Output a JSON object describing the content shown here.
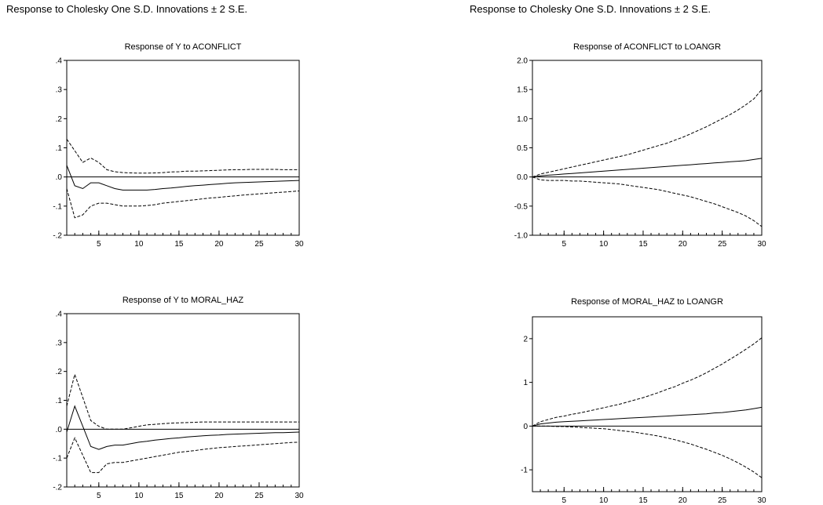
{
  "headings": {
    "left": "Response to Cholesky One S.D. Innovations ± 2 S.E.",
    "right": "Response to Cholesky One S.D. Innovations ± 2 S.E."
  },
  "chart_data": [
    {
      "type": "line",
      "title": "Response of Y to ACONFLICT",
      "xlim": [
        1,
        30
      ],
      "ylim": [
        -0.2,
        0.4
      ],
      "xticks": [
        5,
        10,
        15,
        20,
        25,
        30
      ],
      "yticks": [
        -0.2,
        -0.1,
        0.0,
        0.1,
        0.2,
        0.3,
        0.4
      ],
      "ytick_labels": [
        "-.2",
        "-.1",
        ".0",
        ".1",
        ".2",
        ".3",
        ".4"
      ],
      "x": [
        1,
        2,
        3,
        4,
        5,
        6,
        7,
        8,
        9,
        10,
        11,
        12,
        13,
        14,
        15,
        16,
        17,
        18,
        19,
        20,
        21,
        22,
        23,
        24,
        25,
        26,
        27,
        28,
        29,
        30
      ],
      "series": [
        {
          "values": [
            0.04,
            -0.03,
            -0.04,
            -0.02,
            -0.02,
            -0.03,
            -0.04,
            -0.045,
            -0.045,
            -0.045,
            -0.045,
            -0.043,
            -0.04,
            -0.038,
            -0.035,
            -0.032,
            -0.03,
            -0.028,
            -0.026,
            -0.024,
            -0.022,
            -0.02,
            -0.019,
            -0.018,
            -0.017,
            -0.016,
            -0.015,
            -0.014,
            -0.013,
            -0.012
          ],
          "style": "solid"
        },
        {
          "values": [
            0.13,
            0.09,
            0.05,
            0.065,
            0.05,
            0.025,
            0.018,
            0.015,
            0.014,
            0.013,
            0.013,
            0.014,
            0.015,
            0.017,
            0.018,
            0.02,
            0.02,
            0.021,
            0.022,
            0.023,
            0.024,
            0.025,
            0.025,
            0.026,
            0.026,
            0.026,
            0.026,
            0.025,
            0.025,
            0.025
          ],
          "style": "dashed"
        },
        {
          "values": [
            -0.04,
            -0.14,
            -0.13,
            -0.1,
            -0.09,
            -0.09,
            -0.095,
            -0.1,
            -0.1,
            -0.1,
            -0.098,
            -0.095,
            -0.09,
            -0.087,
            -0.084,
            -0.081,
            -0.078,
            -0.075,
            -0.072,
            -0.07,
            -0.067,
            -0.065,
            -0.062,
            -0.06,
            -0.058,
            -0.056,
            -0.054,
            -0.052,
            -0.05,
            -0.048
          ],
          "style": "dashed"
        }
      ]
    },
    {
      "type": "line",
      "title": "Response of ACONFLICT to LOANGR",
      "xlim": [
        1,
        30
      ],
      "ylim": [
        -1.0,
        2.0
      ],
      "xticks": [
        5,
        10,
        15,
        20,
        25,
        30
      ],
      "yticks": [
        -1.0,
        -0.5,
        0.0,
        0.5,
        1.0,
        1.5,
        2.0
      ],
      "ytick_labels": [
        "-1.0",
        "-0.5",
        "0.0",
        "0.5",
        "1.0",
        "1.5",
        "2.0"
      ],
      "x": [
        1,
        2,
        3,
        4,
        5,
        6,
        7,
        8,
        9,
        10,
        11,
        12,
        13,
        14,
        15,
        16,
        17,
        18,
        19,
        20,
        21,
        22,
        23,
        24,
        25,
        26,
        27,
        28,
        29,
        30
      ],
      "series": [
        {
          "values": [
            0,
            0.02,
            0.03,
            0.04,
            0.05,
            0.06,
            0.07,
            0.08,
            0.09,
            0.1,
            0.11,
            0.12,
            0.13,
            0.14,
            0.15,
            0.16,
            0.17,
            0.18,
            0.19,
            0.2,
            0.21,
            0.22,
            0.23,
            0.24,
            0.25,
            0.26,
            0.27,
            0.28,
            0.3,
            0.32
          ],
          "style": "solid"
        },
        {
          "values": [
            0,
            0.05,
            0.08,
            0.11,
            0.14,
            0.17,
            0.2,
            0.23,
            0.26,
            0.29,
            0.32,
            0.35,
            0.38,
            0.42,
            0.46,
            0.5,
            0.54,
            0.58,
            0.63,
            0.68,
            0.74,
            0.8,
            0.86,
            0.93,
            1.0,
            1.07,
            1.15,
            1.24,
            1.34,
            1.5
          ],
          "style": "dashed"
        },
        {
          "values": [
            0,
            -0.05,
            -0.06,
            -0.06,
            -0.06,
            -0.07,
            -0.07,
            -0.08,
            -0.09,
            -0.1,
            -0.11,
            -0.12,
            -0.14,
            -0.16,
            -0.18,
            -0.2,
            -0.22,
            -0.25,
            -0.28,
            -0.31,
            -0.34,
            -0.38,
            -0.42,
            -0.46,
            -0.51,
            -0.56,
            -0.61,
            -0.67,
            -0.75,
            -0.85
          ],
          "style": "dashed"
        }
      ]
    },
    {
      "type": "line",
      "title": "Response of Y to MORAL_HAZ",
      "xlim": [
        1,
        30
      ],
      "ylim": [
        -0.2,
        0.4
      ],
      "xticks": [
        5,
        10,
        15,
        20,
        25,
        30
      ],
      "yticks": [
        -0.2,
        -0.1,
        0.0,
        0.1,
        0.2,
        0.3,
        0.4
      ],
      "ytick_labels": [
        "-.2",
        "-.1",
        ".0",
        ".1",
        ".2",
        ".3",
        ".4"
      ],
      "x": [
        1,
        2,
        3,
        4,
        5,
        6,
        7,
        8,
        9,
        10,
        11,
        12,
        13,
        14,
        15,
        16,
        17,
        18,
        19,
        20,
        21,
        22,
        23,
        24,
        25,
        26,
        27,
        28,
        29,
        30
      ],
      "series": [
        {
          "values": [
            -0.01,
            0.08,
            0.01,
            -0.06,
            -0.07,
            -0.06,
            -0.055,
            -0.055,
            -0.05,
            -0.045,
            -0.042,
            -0.038,
            -0.035,
            -0.032,
            -0.03,
            -0.027,
            -0.025,
            -0.023,
            -0.021,
            -0.02,
            -0.018,
            -0.017,
            -0.016,
            -0.015,
            -0.014,
            -0.013,
            -0.012,
            -0.012,
            -0.011,
            -0.01
          ],
          "style": "solid"
        },
        {
          "values": [
            0.08,
            0.19,
            0.11,
            0.03,
            0.01,
            0.0,
            0.0,
            0.0,
            0.005,
            0.01,
            0.015,
            0.017,
            0.019,
            0.021,
            0.022,
            0.023,
            0.024,
            0.025,
            0.025,
            0.025,
            0.025,
            0.025,
            0.025,
            0.025,
            0.025,
            0.025,
            0.025,
            0.025,
            0.025,
            0.025
          ],
          "style": "dashed"
        },
        {
          "values": [
            -0.1,
            -0.03,
            -0.09,
            -0.15,
            -0.15,
            -0.12,
            -0.115,
            -0.115,
            -0.11,
            -0.105,
            -0.1,
            -0.095,
            -0.09,
            -0.085,
            -0.08,
            -0.077,
            -0.074,
            -0.07,
            -0.067,
            -0.064,
            -0.062,
            -0.06,
            -0.058,
            -0.056,
            -0.054,
            -0.052,
            -0.05,
            -0.048,
            -0.046,
            -0.045
          ],
          "style": "dashed"
        }
      ]
    },
    {
      "type": "line",
      "title": "Response of MORAL_HAZ to LOANGR",
      "xlim": [
        1,
        30
      ],
      "ylim": [
        -1.5,
        2.5
      ],
      "xticks": [
        5,
        10,
        15,
        20,
        25,
        30
      ],
      "yticks": [
        -1,
        0,
        1,
        2
      ],
      "ytick_labels": [
        "-1",
        "0",
        "1",
        "2"
      ],
      "x": [
        1,
        2,
        3,
        4,
        5,
        6,
        7,
        8,
        9,
        10,
        11,
        12,
        13,
        14,
        15,
        16,
        17,
        18,
        19,
        20,
        21,
        22,
        23,
        24,
        25,
        26,
        27,
        28,
        29,
        30
      ],
      "series": [
        {
          "values": [
            0,
            0.05,
            0.07,
            0.09,
            0.1,
            0.11,
            0.12,
            0.13,
            0.14,
            0.15,
            0.16,
            0.17,
            0.18,
            0.19,
            0.2,
            0.21,
            0.22,
            0.23,
            0.24,
            0.25,
            0.26,
            0.27,
            0.28,
            0.3,
            0.31,
            0.33,
            0.35,
            0.37,
            0.4,
            0.43
          ],
          "style": "solid"
        },
        {
          "values": [
            0,
            0.1,
            0.15,
            0.2,
            0.23,
            0.27,
            0.3,
            0.34,
            0.38,
            0.42,
            0.46,
            0.5,
            0.55,
            0.6,
            0.65,
            0.71,
            0.77,
            0.84,
            0.9,
            0.98,
            1.05,
            1.13,
            1.22,
            1.32,
            1.42,
            1.53,
            1.64,
            1.76,
            1.88,
            2.02
          ],
          "style": "dashed"
        },
        {
          "values": [
            0,
            0.0,
            0.0,
            -0.01,
            -0.01,
            -0.02,
            -0.03,
            -0.04,
            -0.05,
            -0.06,
            -0.08,
            -0.1,
            -0.12,
            -0.14,
            -0.17,
            -0.2,
            -0.23,
            -0.27,
            -0.31,
            -0.36,
            -0.41,
            -0.47,
            -0.53,
            -0.6,
            -0.67,
            -0.75,
            -0.84,
            -0.94,
            -1.05,
            -1.18
          ],
          "style": "dashed"
        }
      ]
    }
  ]
}
